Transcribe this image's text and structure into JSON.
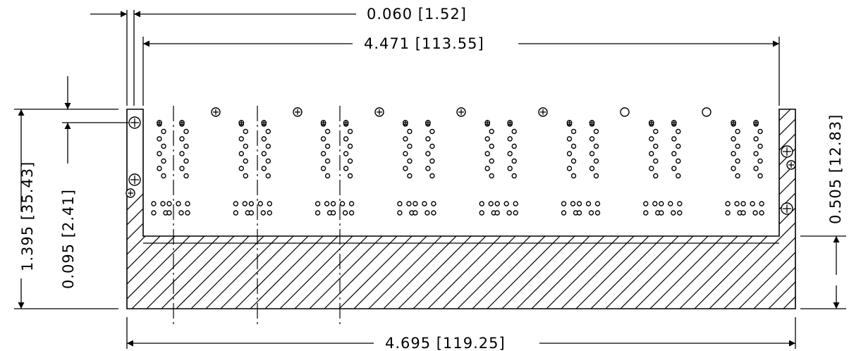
{
  "dimensions": {
    "wall_thickness": "0.060 [1.52]",
    "inner_width": "4.471 [113.55]",
    "overall_width": "4.695 [119.25]",
    "overall_height": "1.395 [35.43]",
    "screw_offset": "0.095 [2.41]",
    "base_height": "0.505 [12.83]"
  },
  "drawing": {
    "connector_groups": 8,
    "style": "section-hatched enclosure, side view"
  }
}
